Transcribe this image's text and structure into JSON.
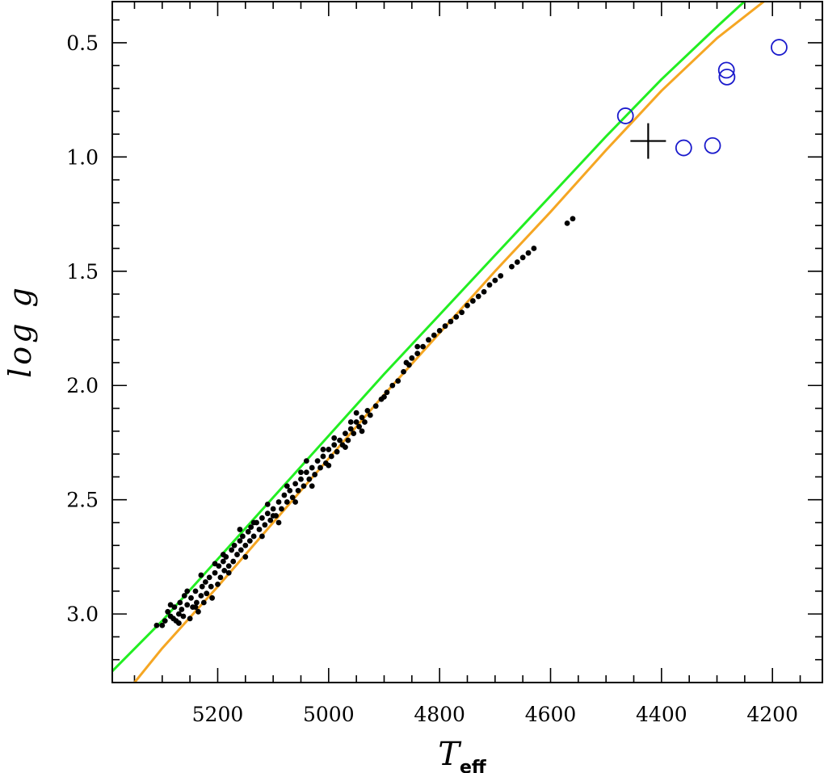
{
  "chart_data": {
    "type": "scatter",
    "xlabel": "T",
    "xlabel_sub": "eff",
    "ylabel": "log g",
    "xlim": [
      5390,
      4110
    ],
    "ylim": [
      0.32,
      3.3
    ],
    "y_inverted": true,
    "x_inverted": true,
    "x_ticks_major": [
      5200,
      5000,
      4800,
      4600,
      4400,
      4200
    ],
    "x_tick_labels": [
      "5200",
      "5000",
      "4800",
      "4600",
      "4400",
      "4200"
    ],
    "y_ticks_major": [
      0.5,
      1.0,
      1.5,
      2.0,
      2.5,
      3.0
    ],
    "y_tick_labels": [
      "0.5",
      "1.0",
      "1.5",
      "2.0",
      "2.5",
      "3.0"
    ],
    "x_tick_minor_step": 50,
    "y_tick_minor_step": 0.1,
    "grid": false,
    "colors": {
      "green_track": "#22ee22",
      "orange_track": "#f5a623",
      "dots": "#000000",
      "circles": "#1a1acc",
      "cross": "#000000"
    },
    "series": [
      {
        "kind": "line",
        "color": "#22ee22",
        "points": [
          [
            5390,
            3.25
          ],
          [
            5300,
            3.03
          ],
          [
            5200,
            2.76
          ],
          [
            5100,
            2.49
          ],
          [
            5000,
            2.22
          ],
          [
            4900,
            1.95
          ],
          [
            4800,
            1.69
          ],
          [
            4700,
            1.43
          ],
          [
            4600,
            1.17
          ],
          [
            4500,
            0.91
          ],
          [
            4400,
            0.66
          ],
          [
            4300,
            0.43
          ],
          [
            4215,
            0.24
          ]
        ]
      },
      {
        "kind": "line",
        "color": "#f5a623",
        "points": [
          [
            5350,
            3.3
          ],
          [
            5300,
            3.15
          ],
          [
            5200,
            2.88
          ],
          [
            5100,
            2.6
          ],
          [
            5000,
            2.32
          ],
          [
            4900,
            2.04
          ],
          [
            4800,
            1.77
          ],
          [
            4700,
            1.5
          ],
          [
            4600,
            1.24
          ],
          [
            4500,
            0.97
          ],
          [
            4400,
            0.71
          ],
          [
            4300,
            0.48
          ],
          [
            4200,
            0.29
          ],
          [
            4110,
            0.15
          ]
        ]
      },
      {
        "kind": "scatter",
        "marker": "dot",
        "color": "#000000",
        "points": [
          [
            5310,
            3.05
          ],
          [
            5300,
            3.05
          ],
          [
            5295,
            3.03
          ],
          [
            5290,
            2.99
          ],
          [
            5285,
            3.01
          ],
          [
            5280,
            3.02
          ],
          [
            5278,
            2.97
          ],
          [
            5275,
            3.03
          ],
          [
            5270,
            3.0
          ],
          [
            5268,
            2.95
          ],
          [
            5265,
            2.98
          ],
          [
            5262,
            3.01
          ],
          [
            5260,
            2.92
          ],
          [
            5255,
            2.96
          ],
          [
            5250,
            3.02
          ],
          [
            5248,
            2.93
          ],
          [
            5245,
            2.97
          ],
          [
            5240,
            2.9
          ],
          [
            5238,
            2.95
          ],
          [
            5235,
            2.99
          ],
          [
            5230,
            2.92
          ],
          [
            5228,
            2.88
          ],
          [
            5225,
            2.95
          ],
          [
            5222,
            2.86
          ],
          [
            5220,
            2.91
          ],
          [
            5215,
            2.84
          ],
          [
            5212,
            2.88
          ],
          [
            5210,
            2.93
          ],
          [
            5205,
            2.82
          ],
          [
            5200,
            2.87
          ],
          [
            5198,
            2.79
          ],
          [
            5195,
            2.84
          ],
          [
            5190,
            2.77
          ],
          [
            5188,
            2.81
          ],
          [
            5185,
            2.75
          ],
          [
            5180,
            2.79
          ],
          [
            5175,
            2.72
          ],
          [
            5172,
            2.77
          ],
          [
            5170,
            2.7
          ],
          [
            5165,
            2.74
          ],
          [
            5160,
            2.68
          ],
          [
            5158,
            2.72
          ],
          [
            5155,
            2.66
          ],
          [
            5150,
            2.7
          ],
          [
            5145,
            2.64
          ],
          [
            5142,
            2.68
          ],
          [
            5140,
            2.62
          ],
          [
            5135,
            2.66
          ],
          [
            5130,
            2.6
          ],
          [
            5125,
            2.63
          ],
          [
            5120,
            2.58
          ],
          [
            5115,
            2.61
          ],
          [
            5110,
            2.56
          ],
          [
            5105,
            2.59
          ],
          [
            5100,
            2.54
          ],
          [
            5095,
            2.57
          ],
          [
            5090,
            2.51
          ],
          [
            5085,
            2.54
          ],
          [
            5080,
            2.48
          ],
          [
            5075,
            2.51
          ],
          [
            5070,
            2.46
          ],
          [
            5065,
            2.49
          ],
          [
            5060,
            2.43
          ],
          [
            5055,
            2.46
          ],
          [
            5050,
            2.41
          ],
          [
            5045,
            2.44
          ],
          [
            5040,
            2.38
          ],
          [
            5035,
            2.41
          ],
          [
            5030,
            2.36
          ],
          [
            5025,
            2.39
          ],
          [
            5020,
            2.33
          ],
          [
            5015,
            2.36
          ],
          [
            5010,
            2.31
          ],
          [
            5005,
            2.34
          ],
          [
            5000,
            2.28
          ],
          [
            4995,
            2.31
          ],
          [
            4990,
            2.26
          ],
          [
            4985,
            2.29
          ],
          [
            4980,
            2.24
          ],
          [
            4975,
            2.26
          ],
          [
            4970,
            2.21
          ],
          [
            4965,
            2.24
          ],
          [
            4960,
            2.19
          ],
          [
            4955,
            2.21
          ],
          [
            4950,
            2.16
          ],
          [
            4945,
            2.18
          ],
          [
            4940,
            2.14
          ],
          [
            4935,
            2.16
          ],
          [
            4930,
            2.11
          ],
          [
            4925,
            2.13
          ],
          [
            4915,
            2.09
          ],
          [
            4905,
            2.06
          ],
          [
            4895,
            2.03
          ],
          [
            4885,
            2.0
          ],
          [
            4875,
            1.98
          ],
          [
            4865,
            1.94
          ],
          [
            4855,
            1.91
          ],
          [
            4850,
            1.88
          ],
          [
            4840,
            1.86
          ],
          [
            4830,
            1.83
          ],
          [
            4820,
            1.8
          ],
          [
            4810,
            1.78
          ],
          [
            4800,
            1.76
          ],
          [
            4790,
            1.74
          ],
          [
            4780,
            1.72
          ],
          [
            4770,
            1.7
          ],
          [
            4760,
            1.68
          ],
          [
            4750,
            1.65
          ],
          [
            4740,
            1.63
          ],
          [
            4730,
            1.61
          ],
          [
            4720,
            1.59
          ],
          [
            4710,
            1.56
          ],
          [
            4700,
            1.54
          ],
          [
            4690,
            1.52
          ],
          [
            4670,
            1.48
          ],
          [
            4650,
            1.44
          ],
          [
            4640,
            1.42
          ],
          [
            4630,
            1.4
          ],
          [
            4570,
            1.29
          ],
          [
            4560,
            1.27
          ],
          [
            5180,
            2.82
          ],
          [
            5150,
            2.75
          ],
          [
            5120,
            2.66
          ],
          [
            5090,
            2.6
          ],
          [
            5060,
            2.51
          ],
          [
            5030,
            2.44
          ],
          [
            5000,
            2.35
          ],
          [
            4970,
            2.27
          ],
          [
            4940,
            2.2
          ],
          [
            5240,
            2.97
          ],
          [
            5270,
            3.04
          ],
          [
            5255,
            2.9
          ],
          [
            5205,
            2.78
          ],
          [
            5160,
            2.63
          ],
          [
            5110,
            2.52
          ],
          [
            5075,
            2.44
          ],
          [
            5040,
            2.33
          ],
          [
            4990,
            2.23
          ],
          [
            4950,
            2.12
          ],
          [
            4900,
            2.05
          ],
          [
            4860,
            1.9
          ],
          [
            4840,
            1.83
          ],
          [
            4660,
            1.46
          ],
          [
            5285,
            2.96
          ],
          [
            5230,
            2.83
          ],
          [
            5190,
            2.74
          ],
          [
            5135,
            2.6
          ],
          [
            5100,
            2.57
          ],
          [
            5050,
            2.38
          ],
          [
            5010,
            2.28
          ],
          [
            4960,
            2.16
          ]
        ]
      },
      {
        "kind": "scatter",
        "marker": "open-circle",
        "color": "#1a1acc",
        "points": [
          [
            4465,
            0.82
          ],
          [
            4360,
            0.96
          ],
          [
            4308,
            0.95
          ],
          [
            4283,
            0.62
          ],
          [
            4282,
            0.65
          ],
          [
            4188,
            0.52
          ]
        ]
      },
      {
        "kind": "scatter",
        "marker": "cross",
        "color": "#000000",
        "points": [
          [
            4424,
            0.93
          ]
        ]
      }
    ]
  }
}
